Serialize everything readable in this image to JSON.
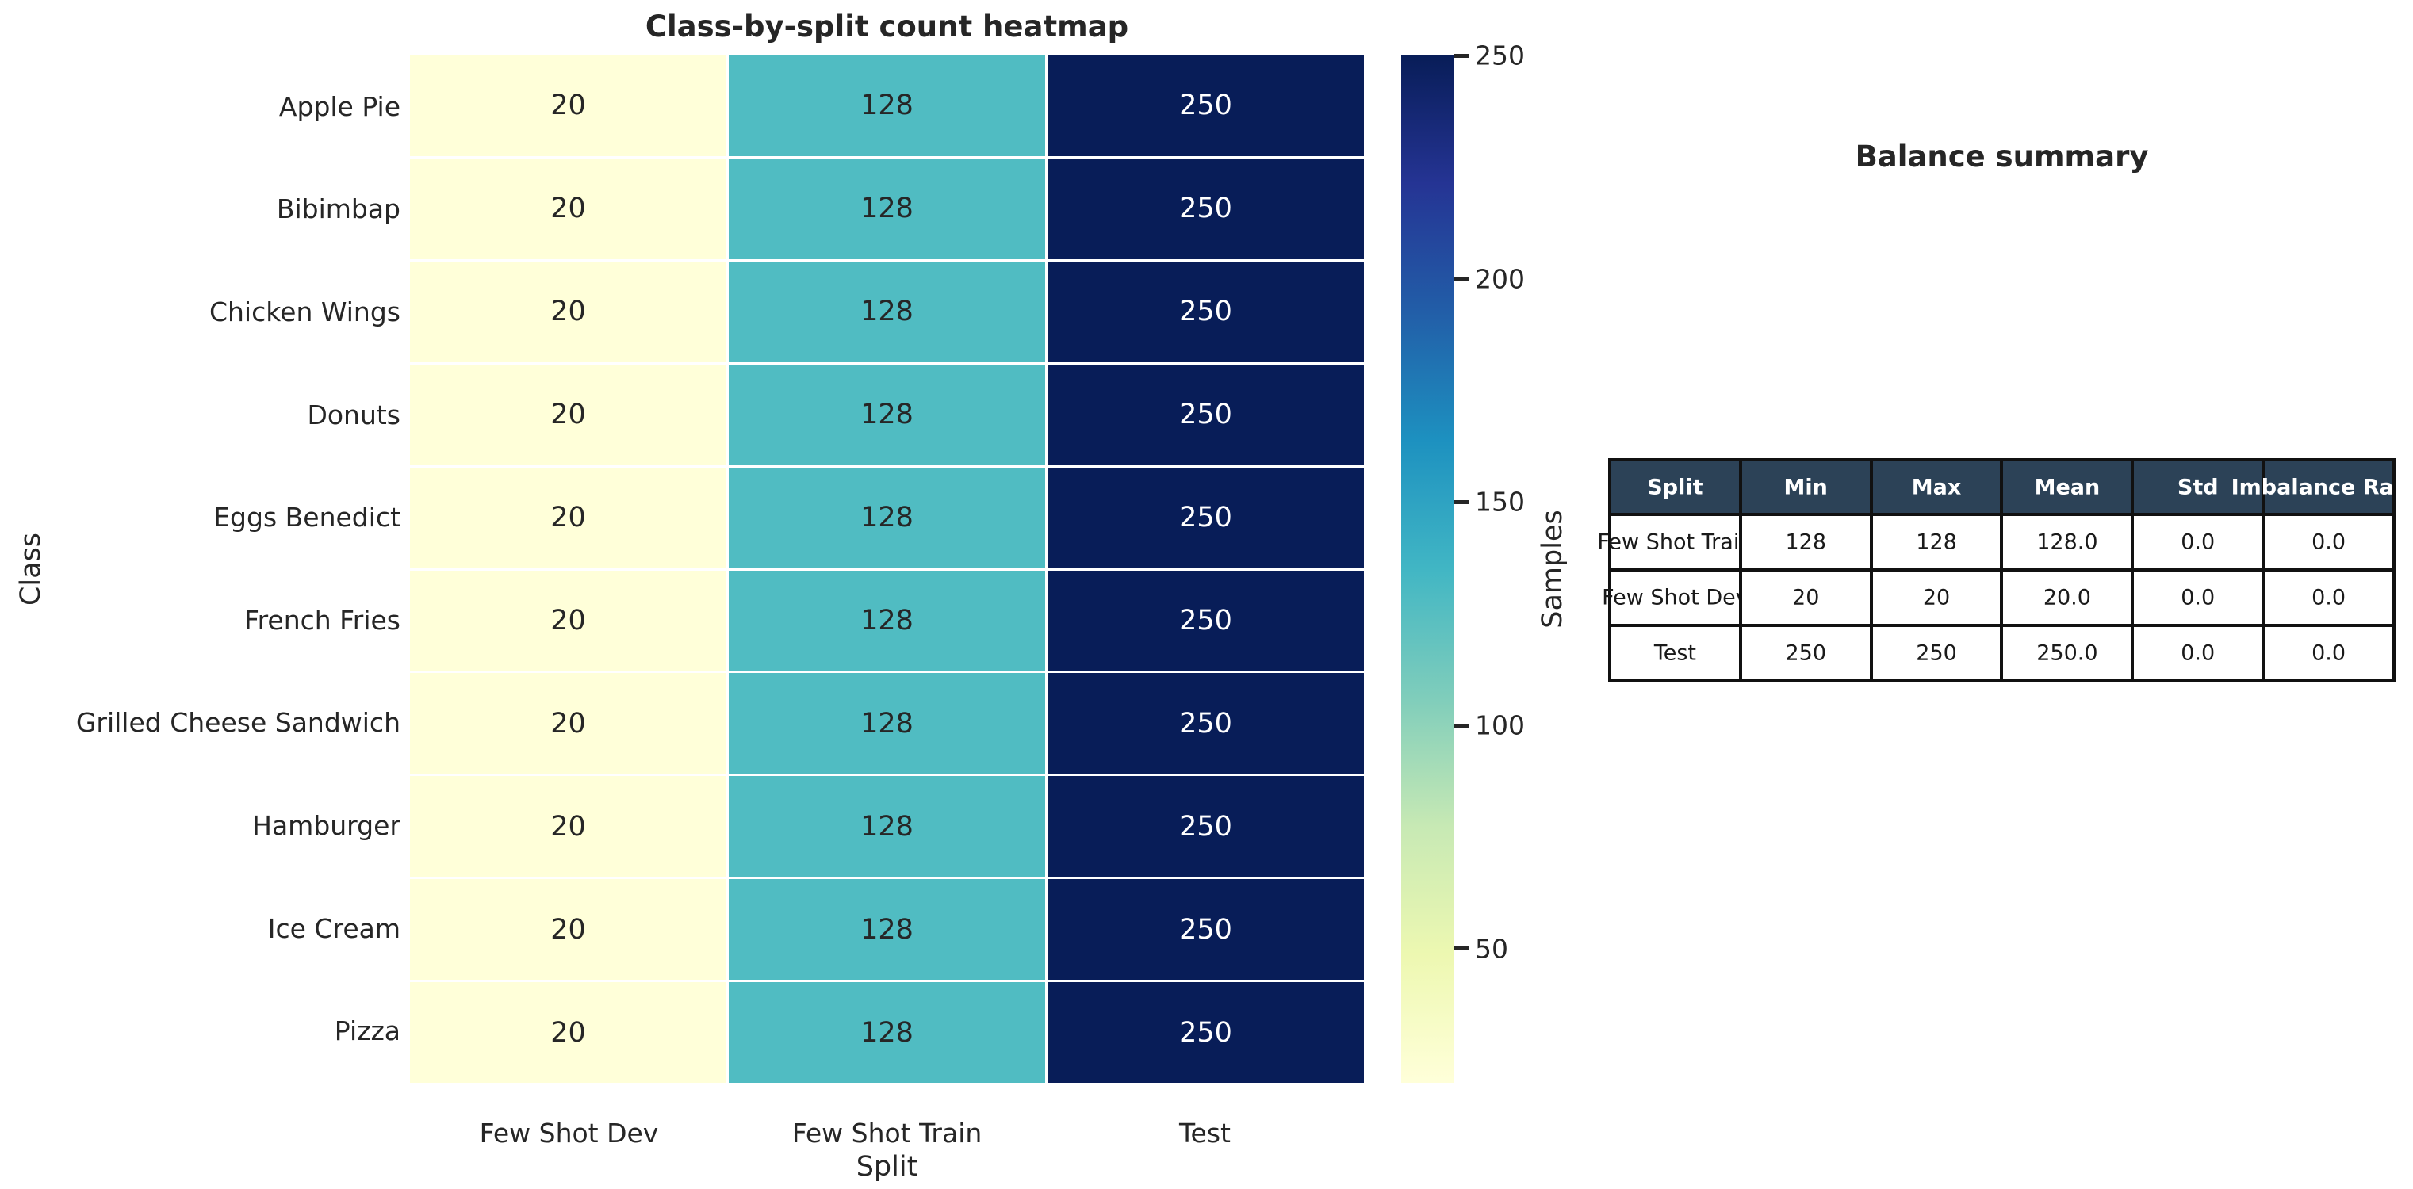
{
  "chart_data": [
    {
      "type": "heatmap",
      "title": "Class-by-split count heatmap",
      "xlabel": "Split",
      "ylabel": "Class",
      "x_categories": [
        "Few Shot Dev",
        "Few Shot Train",
        "Test"
      ],
      "y_categories": [
        "Apple Pie",
        "Bibimbap",
        "Chicken Wings",
        "Donuts",
        "Eggs Benedict",
        "French Fries",
        "Grilled Cheese Sandwich",
        "Hamburger",
        "Ice Cream",
        "Pizza"
      ],
      "values": [
        [
          20,
          128,
          250
        ],
        [
          20,
          128,
          250
        ],
        [
          20,
          128,
          250
        ],
        [
          20,
          128,
          250
        ],
        [
          20,
          128,
          250
        ],
        [
          20,
          128,
          250
        ],
        [
          20,
          128,
          250
        ],
        [
          20,
          128,
          250
        ],
        [
          20,
          128,
          250
        ],
        [
          20,
          128,
          250
        ]
      ],
      "colorbar": {
        "label": "Samples",
        "ticks": [
          50,
          100,
          150,
          200,
          250
        ],
        "vmin": 20,
        "vmax": 250,
        "colormap": "YlGnBu"
      },
      "grid_line_color": "#ffffff",
      "legend": "none"
    },
    {
      "type": "table",
      "title": "Balance summary",
      "columns": [
        "Split",
        "Min",
        "Max",
        "Mean",
        "Std",
        "Imbalance Ratio"
      ],
      "rows": [
        [
          "Few Shot Train",
          "128",
          "128",
          "128.0",
          "0.0",
          "0.0"
        ],
        [
          "Few Shot Dev",
          "20",
          "20",
          "20.0",
          "0.0",
          "0.0"
        ],
        [
          "Test",
          "250",
          "250",
          "250.0",
          "0.0",
          "0.0"
        ]
      ]
    }
  ],
  "colors": {
    "heatmap_low": "#ffffd9",
    "heatmap_mid": "#41b6c4",
    "heatmap_high": "#081d58",
    "colormap_stops": [
      {
        "t": 0.0,
        "c": "#ffffd9"
      },
      {
        "t": 0.125,
        "c": "#edf8b1"
      },
      {
        "t": 0.25,
        "c": "#c7e9b4"
      },
      {
        "t": 0.375,
        "c": "#7fcdbb"
      },
      {
        "t": 0.5,
        "c": "#41b6c4"
      },
      {
        "t": 0.625,
        "c": "#1d91c0"
      },
      {
        "t": 0.75,
        "c": "#225ea8"
      },
      {
        "t": 0.875,
        "c": "#253494"
      },
      {
        "t": 1.0,
        "c": "#081d58"
      }
    ],
    "table_header_bg": "#2c4257",
    "table_header_text": "#ffffff",
    "table_border": "#111111",
    "text": "#262626"
  }
}
